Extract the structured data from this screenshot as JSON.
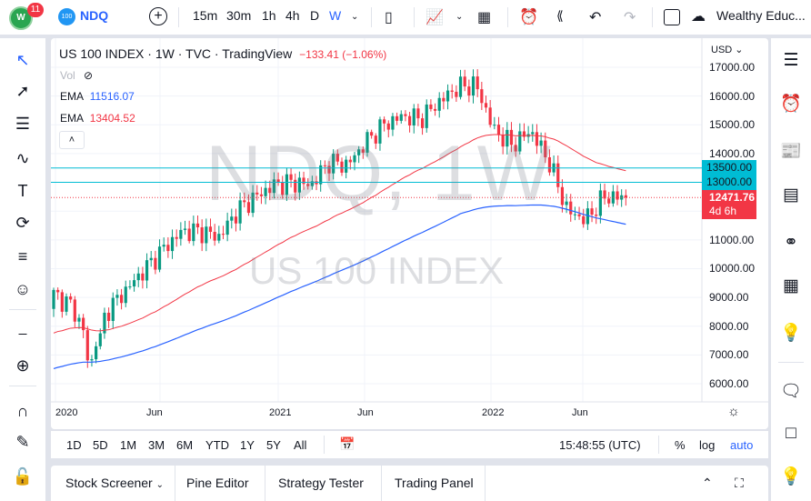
{
  "toolbar": {
    "notifications": "11",
    "symbol_badge": "100",
    "symbol": "NDQ",
    "intervals": [
      "15m",
      "30m",
      "1h",
      "4h",
      "D",
      "W"
    ],
    "active_interval": "W",
    "account": "Wealthy Educ..."
  },
  "legend": {
    "title": "US 100 INDEX",
    "interval": "1W",
    "exchange": "TVC",
    "source": "TradingView",
    "change": "−133.41 (−1.06%)",
    "vol_label": "Vol",
    "ema1_label": "EMA",
    "ema1_value": "11516.07",
    "ema2_label": "EMA",
    "ema2_value": "13404.52"
  },
  "watermark": {
    "line1": "NDQ, 1W",
    "line2": "US 100 INDEX"
  },
  "price_axis": {
    "currency": "USD",
    "ticks": [
      "17000.00",
      "16000.00",
      "15000.00",
      "14000.00",
      "11000.00",
      "10000.00",
      "9000.00",
      "8000.00",
      "7000.00",
      "6000.00"
    ],
    "levels": [
      "13500.00",
      "13000.00"
    ],
    "last_price": "12471.76",
    "countdown": "4d 6h"
  },
  "time_axis": {
    "ticks": [
      "2020",
      "Jun",
      "2021",
      "Jun",
      "2022",
      "Jun"
    ]
  },
  "range_bar": {
    "ranges": [
      "1D",
      "5D",
      "1M",
      "3M",
      "6M",
      "YTD",
      "1Y",
      "5Y",
      "All"
    ],
    "clock": "15:48:55 (UTC)",
    "pct": "%",
    "log": "log",
    "auto": "auto"
  },
  "bottom_panel": {
    "tabs": [
      "Stock Screener",
      "Pine Editor",
      "Strategy Tester",
      "Trading Panel"
    ]
  },
  "colors": {
    "up": "#089981",
    "down": "#f23645",
    "ema_fast": "#f23645",
    "ema_slow": "#2962ff",
    "level_line": "#00bcd4",
    "accent": "#2962ff"
  },
  "chart_data": {
    "type": "candlestick",
    "symbol": "US 100 INDEX",
    "interval": "1W",
    "ylim": [
      6000,
      17000
    ],
    "monthly_closes": {
      "x": [
        "2020-01",
        "2020-02",
        "2020-03",
        "2020-04",
        "2020-05",
        "2020-06",
        "2020-07",
        "2020-08",
        "2020-09",
        "2020-10",
        "2020-11",
        "2020-12",
        "2021-01",
        "2021-02",
        "2021-03",
        "2021-04",
        "2021-05",
        "2021-06",
        "2021-07",
        "2021-08",
        "2021-09",
        "2021-10",
        "2021-11",
        "2021-12",
        "2022-01",
        "2022-02",
        "2022-03",
        "2022-04",
        "2022-05",
        "2022-06",
        "2022-07",
        "2022-08"
      ],
      "y": [
        9100,
        8700,
        7300,
        8600,
        9300,
        10000,
        10700,
        11300,
        11300,
        11100,
        12000,
        12500,
        12900,
        13000,
        12900,
        13700,
        13600,
        14400,
        15000,
        15300,
        15200,
        15800,
        16300,
        16400,
        14800,
        14300,
        14800,
        13700,
        12000,
        11700,
        12500,
        12471.76
      ]
    },
    "ema_fast_last": 13404.52,
    "ema_slow_last": 11516.07,
    "horizontal_levels": [
      13500,
      13000
    ]
  }
}
